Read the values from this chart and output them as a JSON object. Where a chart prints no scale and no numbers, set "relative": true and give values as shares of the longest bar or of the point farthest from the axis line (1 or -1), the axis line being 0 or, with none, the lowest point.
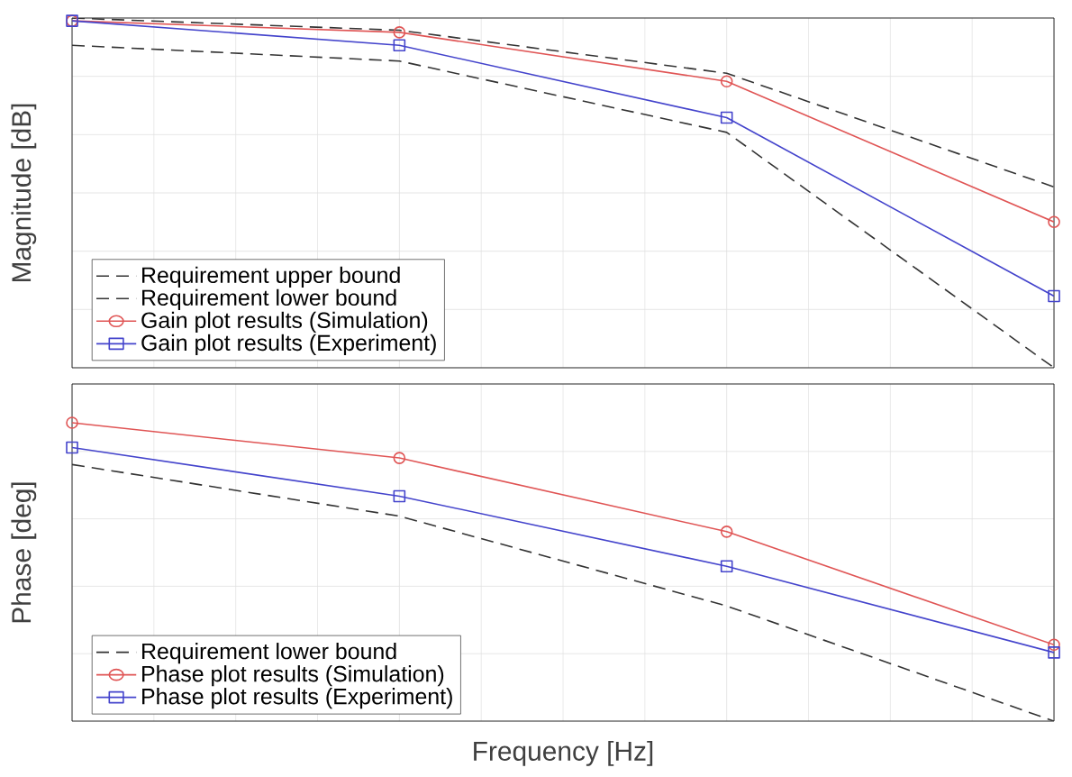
{
  "chart_data": [
    {
      "type": "line",
      "ylabel": "Magnitude [dB]",
      "relative": true,
      "grid": true,
      "legend": "bottom left",
      "categories": [
        null,
        null,
        null,
        null
      ],
      "series": [
        {
          "name": "Requirement upper bound",
          "color": "#333333",
          "line_style": "dashed",
          "marker": "none",
          "values": [
            1.0,
            0.965,
            0.842,
            0.517
          ]
        },
        {
          "name": "Requirement lower bound",
          "color": "#333333",
          "line_style": "dashed",
          "marker": "none",
          "values": [
            0.922,
            0.877,
            0.673,
            0.0
          ]
        },
        {
          "name": "Gain plot results (Simulation)",
          "color": "#e05555",
          "line_style": "solid",
          "marker": "circle",
          "values": [
            0.992,
            0.959,
            0.819,
            0.417
          ]
        },
        {
          "name": "Gain plot results (Experiment)",
          "color": "#4444cc",
          "line_style": "solid",
          "marker": "square",
          "values": [
            0.992,
            0.922,
            0.715,
            0.205
          ]
        }
      ]
    },
    {
      "type": "line",
      "ylabel": "Phase [deg]",
      "xlabel": "Frequency [Hz]",
      "relative": true,
      "grid": true,
      "legend": "bottom left",
      "categories": [
        null,
        null,
        null,
        null
      ],
      "series": [
        {
          "name": "Requirement lower bound",
          "color": "#333333",
          "line_style": "dashed",
          "marker": "none",
          "values": [
            0.86,
            0.687,
            0.386,
            0.0
          ]
        },
        {
          "name": "Phase plot results (Simulation)",
          "color": "#e05555",
          "line_style": "solid",
          "marker": "circle",
          "values": [
            1.0,
            0.882,
            0.635,
            0.256
          ]
        },
        {
          "name": "Phase plot results (Experiment)",
          "color": "#4444cc",
          "line_style": "solid",
          "marker": "square",
          "values": [
            0.917,
            0.754,
            0.519,
            0.23
          ]
        }
      ]
    }
  ]
}
